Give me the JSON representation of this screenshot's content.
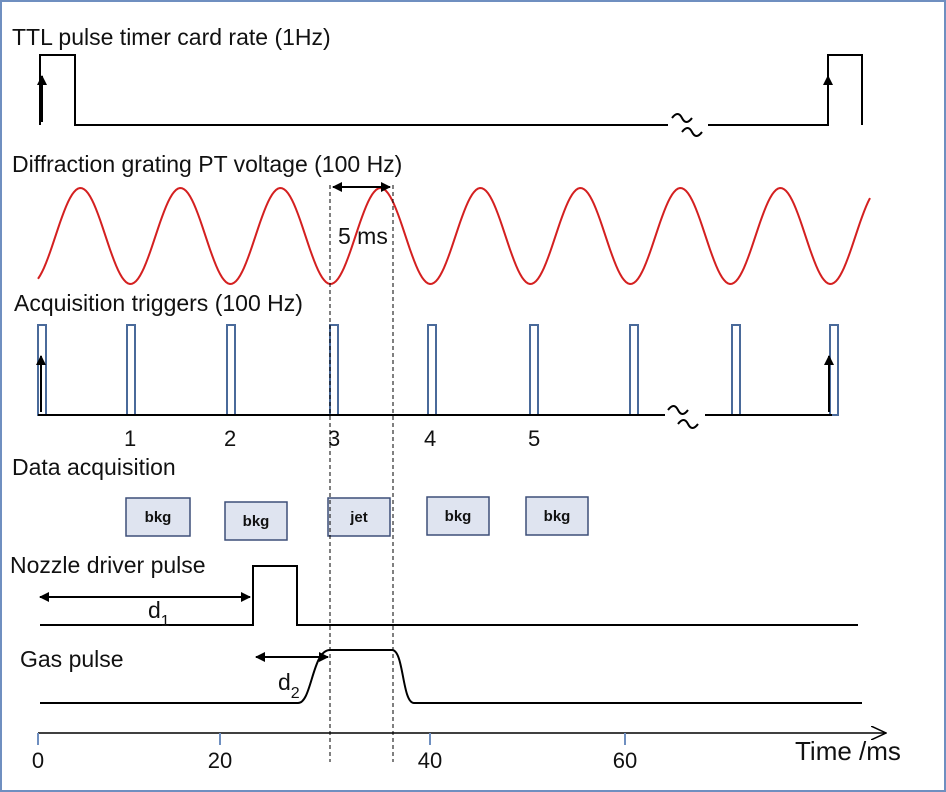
{
  "rows": [
    {
      "title": "TTL pulse timer card rate (1Hz)"
    },
    {
      "title": "Diffraction grating PT voltage (100 Hz)"
    },
    {
      "title": "Acquisition triggers (100 Hz)"
    },
    {
      "title": "Data acquisition"
    },
    {
      "title": "Nozzle driver pulse"
    },
    {
      "title": "Gas pulse"
    }
  ],
  "trigger_labels": [
    "1",
    "2",
    "3",
    "4",
    "5"
  ],
  "boxes": [
    "bkg",
    "bkg",
    "jet",
    "bkg",
    "bkg"
  ],
  "annotations": {
    "period": "5 ms",
    "d1": {
      "main": "d",
      "sub": "1"
    },
    "d2": {
      "main": "d",
      "sub": "2"
    }
  },
  "axis": {
    "label": "Time /ms",
    "ticks": [
      0,
      20,
      40,
      60
    ]
  }
}
